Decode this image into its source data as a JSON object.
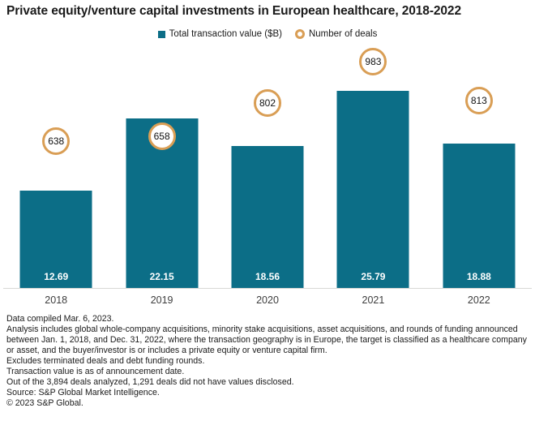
{
  "title": "Private equity/venture capital investments in European healthcare, 2018-2022",
  "legend": [
    {
      "label": "Total transaction value ($B)",
      "marker": "square",
      "color": "#0c6e87"
    },
    {
      "label": "Number of deals",
      "marker": "ring",
      "color": "#d99e55"
    }
  ],
  "colors": {
    "bar": "#0c6e87",
    "deal_ring": "#d99e55",
    "axis_line": "#d8d8d6",
    "bar_value_text": "#ffffff",
    "text": "#1a1a1a"
  },
  "chart_data": {
    "type": "bar",
    "title": "Private equity/venture capital investments in European healthcare, 2018-2022",
    "categories": [
      "2018",
      "2019",
      "2020",
      "2021",
      "2022"
    ],
    "series": [
      {
        "name": "Total transaction value ($B)",
        "type": "bar",
        "values": [
          12.69,
          22.15,
          18.56,
          25.79,
          18.88
        ]
      },
      {
        "name": "Number of deals",
        "type": "point",
        "values": [
          638,
          658,
          802,
          983,
          813
        ]
      }
    ],
    "xlabel": "",
    "ylabel": "",
    "value_axis_range": [
      0,
      32
    ],
    "deals_axis_range": [
      0,
      1090
    ],
    "axes_hidden": true,
    "grid": false,
    "legend_position": "top",
    "data_labels": "inside-bottom of bars; deal counts inside orange rings above bars"
  },
  "footer": {
    "lines": [
      "Data compiled Mar. 6, 2023.",
      "Analysis includes global whole-company acquisitions, minority stake acquisitions, asset acquisitions, and rounds of funding announced between Jan. 1, 2018, and Dec. 31, 2022, where the transaction geography is in Europe, the target is classified as a healthcare company or asset, and the buyer/investor is or includes a private equity or venture capital firm.",
      "Excludes terminated deals and debt funding rounds.",
      "Transaction value is as of announcement date.",
      "Out of the 3,894 deals analyzed, 1,291 deals did not have values disclosed.",
      "Source: S&P Global Market Intelligence.",
      "© 2023 S&P Global."
    ]
  }
}
